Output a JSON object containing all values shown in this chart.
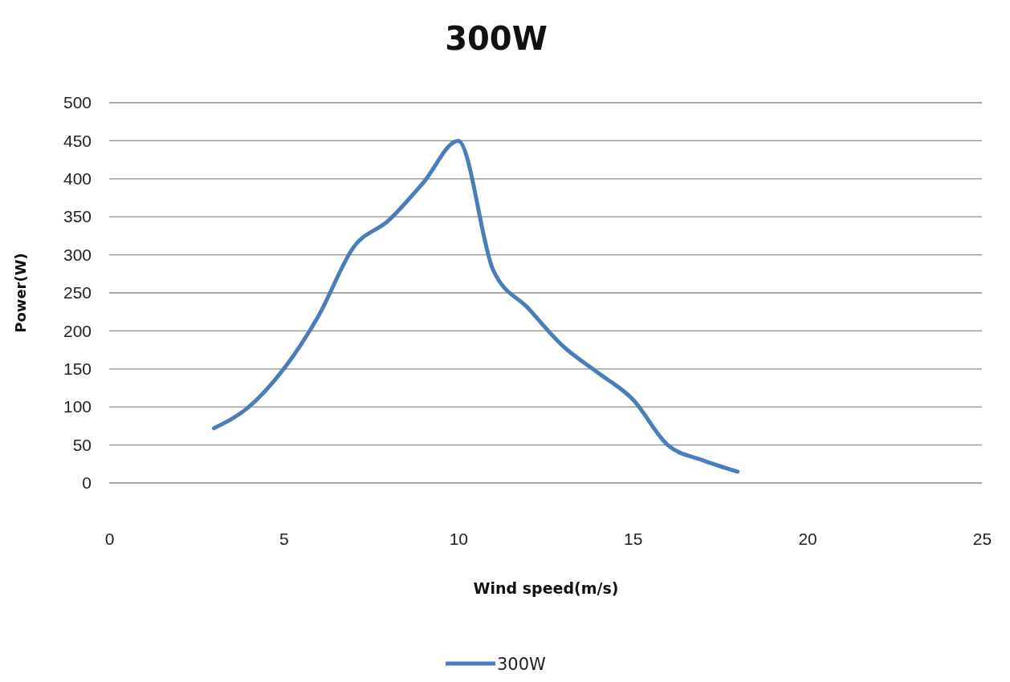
{
  "chart_data": {
    "type": "line",
    "title": "300W",
    "xlabel": "Wind speed(m/s)",
    "ylabel": "Power(W)",
    "x": [
      3,
      4,
      5,
      6,
      7,
      8,
      9,
      10,
      11,
      12,
      13,
      14,
      15,
      16,
      17,
      18
    ],
    "series": [
      {
        "name": "300W",
        "color": "#4a7ebb",
        "values": [
          72,
          100,
          150,
          220,
          310,
          345,
          395,
          450,
          280,
          230,
          180,
          145,
          110,
          50,
          30,
          15
        ]
      }
    ],
    "xlim": [
      0,
      25
    ],
    "xticks": [
      0,
      5,
      10,
      15,
      20,
      25
    ],
    "ylim": [
      0,
      500
    ],
    "yticks": [
      0,
      50,
      100,
      150,
      200,
      250,
      300,
      350,
      400,
      450,
      500
    ],
    "grid": "y",
    "legend": "bottom",
    "marker": "none",
    "line_style": "solid"
  }
}
